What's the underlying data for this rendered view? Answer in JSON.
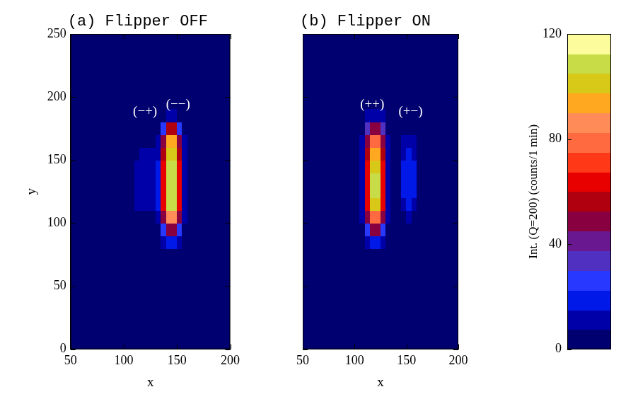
{
  "chart_data": [
    {
      "type": "heatmap",
      "title": "(a) Flipper OFF",
      "x_label": "x",
      "y_label": "y",
      "xlim": [
        50,
        200
      ],
      "xticks": [
        50,
        100,
        150,
        200
      ],
      "ylim": [
        0,
        250
      ],
      "yticks": [
        0,
        50,
        100,
        150,
        200,
        250
      ],
      "grid": false,
      "x": [
        97.5,
        102.5,
        107.5,
        112.5,
        117.5,
        122.5,
        127.5,
        132.5,
        137.5,
        142.5,
        147.5,
        152.5,
        157.5,
        162.5,
        167.5
      ],
      "y": [
        75,
        85,
        95,
        105,
        115,
        125,
        135,
        145,
        155,
        165,
        175,
        185
      ],
      "cells": [
        [
          0,
          0,
          0,
          0,
          0,
          0,
          0,
          0,
          2,
          4,
          4,
          2,
          0,
          0,
          0
        ],
        [
          0,
          0,
          0,
          0,
          0,
          0,
          0,
          2,
          10,
          20,
          20,
          10,
          2,
          0,
          0
        ],
        [
          0,
          0,
          0,
          0,
          0,
          0,
          2,
          5,
          25,
          50,
          50,
          25,
          5,
          0,
          0
        ],
        [
          0,
          0,
          2,
          5,
          6,
          6,
          6,
          10,
          45,
          85,
          85,
          45,
          10,
          0,
          0
        ],
        [
          0,
          0,
          4,
          8,
          10,
          10,
          10,
          15,
          60,
          105,
          105,
          60,
          12,
          0,
          0
        ],
        [
          0,
          0,
          4,
          10,
          12,
          12,
          12,
          15,
          65,
          110,
          110,
          65,
          12,
          0,
          0
        ],
        [
          0,
          0,
          4,
          10,
          12,
          12,
          12,
          15,
          65,
          110,
          110,
          65,
          12,
          0,
          0
        ],
        [
          0,
          0,
          4,
          8,
          10,
          10,
          10,
          15,
          60,
          105,
          105,
          60,
          12,
          0,
          0
        ],
        [
          0,
          0,
          2,
          6,
          8,
          8,
          8,
          12,
          55,
          100,
          100,
          55,
          10,
          0,
          0
        ],
        [
          0,
          0,
          0,
          3,
          5,
          5,
          5,
          10,
          45,
          90,
          90,
          45,
          8,
          0,
          0
        ],
        [
          0,
          0,
          0,
          0,
          0,
          2,
          2,
          5,
          25,
          55,
          55,
          25,
          5,
          0,
          0
        ],
        [
          0,
          0,
          0,
          0,
          0,
          0,
          0,
          2,
          5,
          10,
          10,
          5,
          2,
          0,
          0
        ]
      ],
      "annotations": [
        {
          "text": "(−+)",
          "x": 120,
          "y": 188
        },
        {
          "text": "(−−)",
          "x": 151,
          "y": 194
        }
      ],
      "colorbar": {
        "label": "Int. (Q=200) (counts/1 min)",
        "range": [
          0,
          120
        ],
        "ticks": [
          0,
          40,
          80,
          120
        ]
      }
    },
    {
      "type": "heatmap",
      "title": "(b) Flipper ON",
      "x_label": "x",
      "xlim": [
        50,
        200
      ],
      "xticks": [
        50,
        100,
        150,
        200
      ],
      "ylim": [
        0,
        250
      ],
      "yticks": [
        0,
        50,
        100,
        150,
        200,
        250
      ],
      "grid": false,
      "tick_labels": "x",
      "x": [
        97.5,
        102.5,
        107.5,
        112.5,
        117.5,
        122.5,
        127.5,
        132.5,
        137.5,
        142.5,
        147.5,
        152.5,
        157.5,
        162.5,
        167.5
      ],
      "y": [
        75,
        85,
        95,
        105,
        115,
        125,
        135,
        145,
        155,
        165,
        175,
        185
      ],
      "cells": [
        [
          0,
          0,
          0,
          2,
          4,
          4,
          2,
          0,
          0,
          0,
          0,
          0,
          0,
          0,
          0
        ],
        [
          0,
          0,
          2,
          10,
          15,
          15,
          8,
          2,
          0,
          0,
          0,
          0,
          0,
          0,
          0
        ],
        [
          0,
          0,
          5,
          25,
          45,
          45,
          25,
          5,
          0,
          0,
          0,
          0,
          0,
          0,
          0
        ],
        [
          0,
          0,
          10,
          45,
          80,
          80,
          45,
          10,
          0,
          0,
          4,
          8,
          4,
          0,
          0
        ],
        [
          0,
          0,
          12,
          60,
          100,
          100,
          60,
          12,
          0,
          0,
          12,
          18,
          12,
          0,
          0
        ],
        [
          0,
          0,
          12,
          65,
          105,
          105,
          65,
          12,
          0,
          0,
          15,
          20,
          15,
          0,
          0
        ],
        [
          0,
          0,
          12,
          65,
          105,
          105,
          65,
          12,
          0,
          0,
          15,
          20,
          15,
          0,
          0
        ],
        [
          0,
          0,
          12,
          60,
          100,
          100,
          60,
          12,
          0,
          0,
          15,
          20,
          15,
          0,
          0
        ],
        [
          0,
          0,
          10,
          55,
          95,
          95,
          55,
          10,
          0,
          0,
          12,
          18,
          12,
          0,
          0
        ],
        [
          0,
          0,
          8,
          45,
          80,
          80,
          45,
          8,
          0,
          0,
          8,
          12,
          8,
          0,
          0
        ],
        [
          0,
          0,
          5,
          30,
          50,
          50,
          30,
          5,
          0,
          0,
          2,
          4,
          2,
          0,
          0
        ],
        [
          0,
          0,
          2,
          8,
          12,
          12,
          8,
          2,
          0,
          0,
          0,
          0,
          0,
          0,
          0
        ]
      ],
      "annotations": [
        {
          "text": "(++)",
          "x": 117,
          "y": 194
        },
        {
          "text": "(+−)",
          "x": 154,
          "y": 188
        }
      ]
    }
  ]
}
